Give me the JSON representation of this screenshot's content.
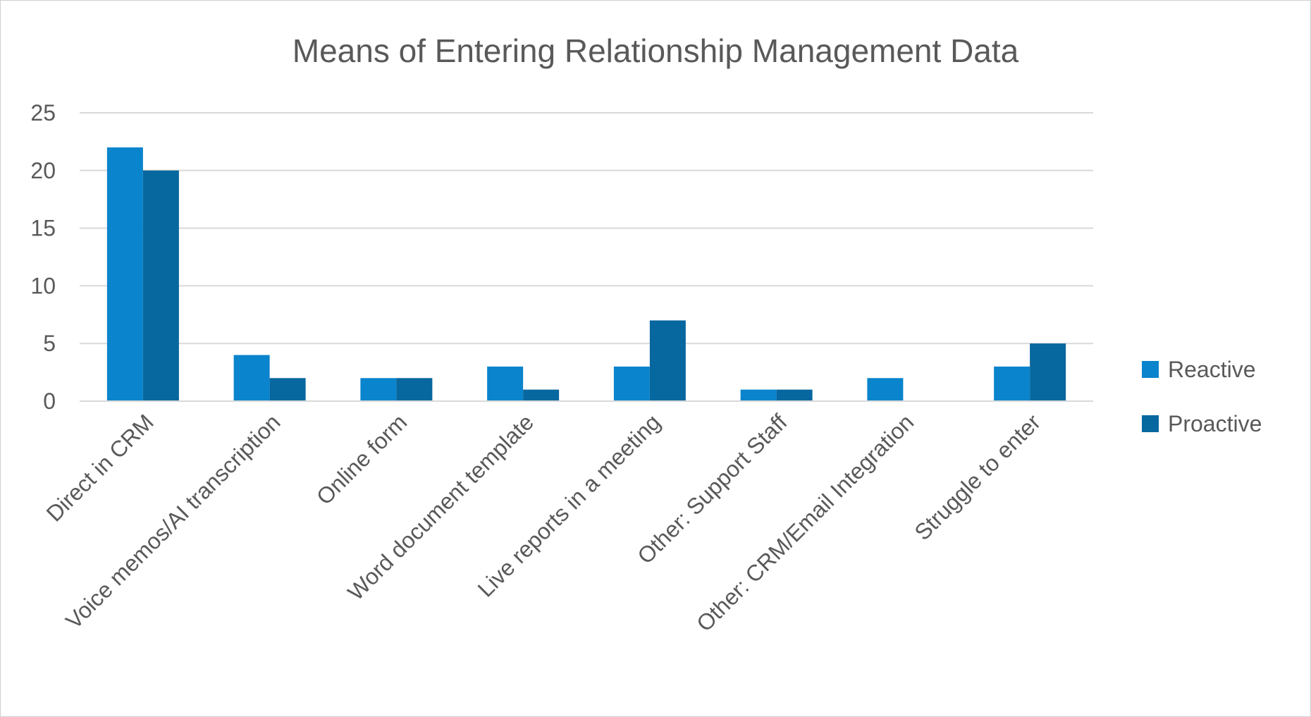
{
  "chart_data": {
    "type": "bar",
    "title": "Means of Entering Relationship Management Data",
    "xlabel": "",
    "ylabel": "",
    "categories": [
      "Direct in CRM",
      "Voice memos/AI transcription",
      "Online form",
      "Word document template",
      "Live reports in a meeting",
      "Other: Support Staff",
      "Other: CRM/Email Integration",
      "Struggle to enter"
    ],
    "series": [
      {
        "name": "Reactive",
        "color": "#0a84cc",
        "values": [
          22,
          4,
          2,
          3,
          3,
          1,
          2,
          3
        ]
      },
      {
        "name": "Proactive",
        "color": "#07679f",
        "values": [
          20,
          2,
          2,
          1,
          7,
          1,
          0,
          5
        ]
      }
    ],
    "ylim": [
      0,
      25
    ],
    "yticks": [
      0,
      5,
      10,
      15,
      20,
      25
    ],
    "grid": true,
    "legend_position": "right"
  }
}
